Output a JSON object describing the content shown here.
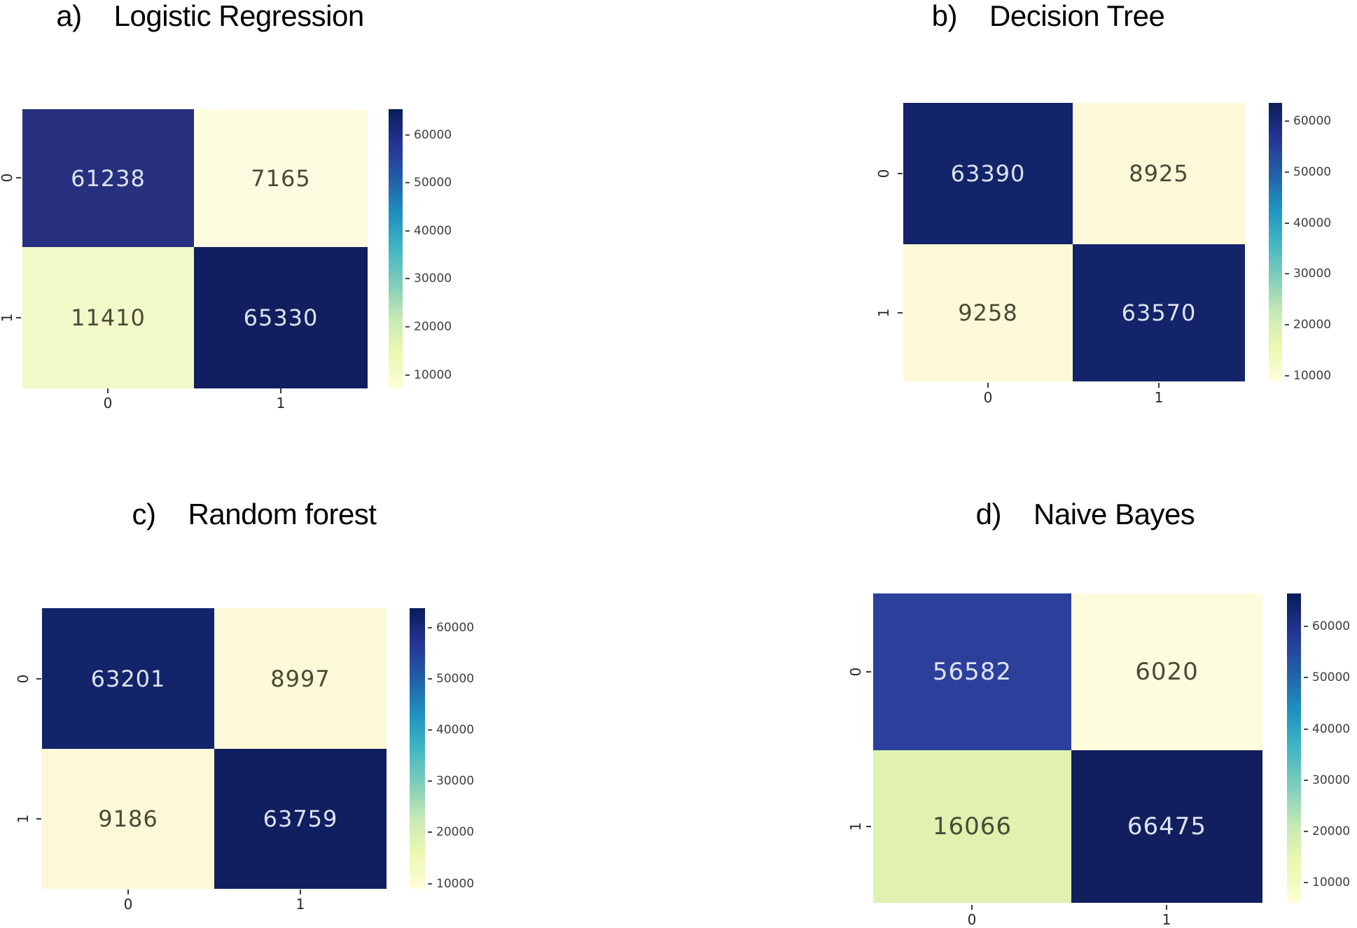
{
  "figure": {
    "background": "#ffffff",
    "colormap": {
      "name": "YlGnBu",
      "stops": [
        "#ffffd9",
        "#edf8b1",
        "#c7e9b4",
        "#7fcdbb",
        "#41b6c4",
        "#1d91c0",
        "#225ea8",
        "#253494",
        "#081d58"
      ]
    }
  },
  "chart_data": [
    {
      "type": "heatmap",
      "panel_label": "a)",
      "title": "Logistic Regression",
      "x_tick_labels": [
        "0",
        "1"
      ],
      "y_tick_labels": [
        "0",
        "1"
      ],
      "matrix": [
        [
          61238,
          7165
        ],
        [
          11410,
          65330
        ]
      ],
      "cell_colors": [
        [
          "#27307f",
          "#fefce0"
        ],
        [
          "#f2f8c8",
          "#111f60"
        ]
      ],
      "cell_text_colors": [
        [
          "#dde4f3",
          "#494936"
        ],
        [
          "#494936",
          "#dde4f3"
        ]
      ],
      "colorbar_ticks": [
        "60000",
        "50000",
        "40000",
        "30000",
        "20000",
        "10000"
      ],
      "legend_position": "right",
      "grid": false
    },
    {
      "type": "heatmap",
      "panel_label": "b)",
      "title": "Decision Tree",
      "x_tick_labels": [
        "0",
        "1"
      ],
      "y_tick_labels": [
        "0",
        "1"
      ],
      "matrix": [
        [
          63390,
          8925
        ],
        [
          9258,
          63570
        ]
      ],
      "cell_colors": [
        [
          "#13246a",
          "#fcf9d8"
        ],
        [
          "#fcf9d8",
          "#13246a"
        ]
      ],
      "cell_text_colors": [
        [
          "#dde4f3",
          "#494936"
        ],
        [
          "#494936",
          "#dde4f3"
        ]
      ],
      "colorbar_ticks": [
        "60000",
        "50000",
        "40000",
        "30000",
        "20000",
        "10000"
      ],
      "legend_position": "right",
      "grid": false
    },
    {
      "type": "heatmap",
      "panel_label": "c)",
      "title": "Random forest",
      "x_tick_labels": [
        "0",
        "1"
      ],
      "y_tick_labels": [
        "0",
        "1"
      ],
      "matrix": [
        [
          63201,
          8997
        ],
        [
          9186,
          63759
        ]
      ],
      "cell_colors": [
        [
          "#13246a",
          "#fcf9d8"
        ],
        [
          "#fcf9d8",
          "#101f60"
        ]
      ],
      "cell_text_colors": [
        [
          "#dde4f3",
          "#494936"
        ],
        [
          "#494936",
          "#dde4f3"
        ]
      ],
      "colorbar_ticks": [
        "60000",
        "50000",
        "40000",
        "30000",
        "20000",
        "10000"
      ],
      "legend_position": "right",
      "grid": false
    },
    {
      "type": "heatmap",
      "panel_label": "d)",
      "title": "Naive Bayes",
      "x_tick_labels": [
        "0",
        "1"
      ],
      "y_tick_labels": [
        "0",
        "1"
      ],
      "matrix": [
        [
          56582,
          6020
        ],
        [
          16066,
          66475
        ]
      ],
      "cell_colors": [
        [
          "#2c409b",
          "#fdfcdd"
        ],
        [
          "#e0f1b0",
          "#121f5e"
        ]
      ],
      "cell_text_colors": [
        [
          "#dde4f3",
          "#494936"
        ],
        [
          "#494936",
          "#dde4f3"
        ]
      ],
      "colorbar_ticks": [
        "60000",
        "50000",
        "40000",
        "30000",
        "20000",
        "10000"
      ],
      "legend_position": "right",
      "grid": false
    }
  ]
}
